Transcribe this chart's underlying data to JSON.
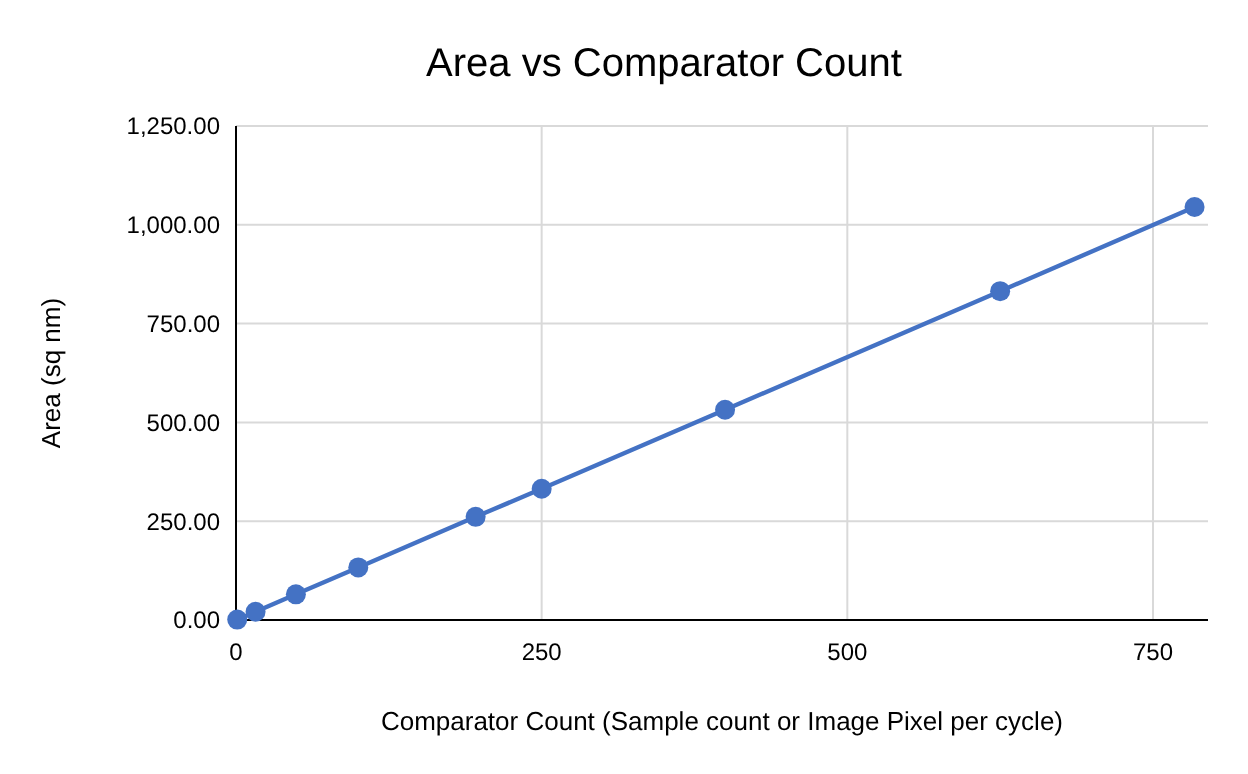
{
  "chart_data": {
    "type": "line",
    "title": "Area vs Comparator Count",
    "xlabel": "Comparator Count (Sample count or Image Pixel per cycle)",
    "ylabel": "Area (sq nm)",
    "x": [
      1,
      16,
      49,
      100,
      196,
      250,
      400,
      625,
      784
    ],
    "series": [
      {
        "color": "#4472c4",
        "values": [
          1,
          21,
          65,
          133,
          261,
          332,
          532,
          832,
          1045
        ]
      }
    ],
    "xlim": [
      0,
      795
    ],
    "xticks": [
      0,
      250,
      500,
      750
    ],
    "ylim": [
      0,
      1250
    ],
    "yticks": [
      {
        "value": 0,
        "label": "0.00"
      },
      {
        "value": 250,
        "label": "250.00"
      },
      {
        "value": 500,
        "label": "500.00"
      },
      {
        "value": 750,
        "label": "750.00"
      },
      {
        "value": 1000,
        "label": "1,000.00"
      },
      {
        "value": 1250,
        "label": "1,250.00"
      }
    ],
    "grid": true,
    "marker": "circle",
    "line_style": "solid"
  }
}
